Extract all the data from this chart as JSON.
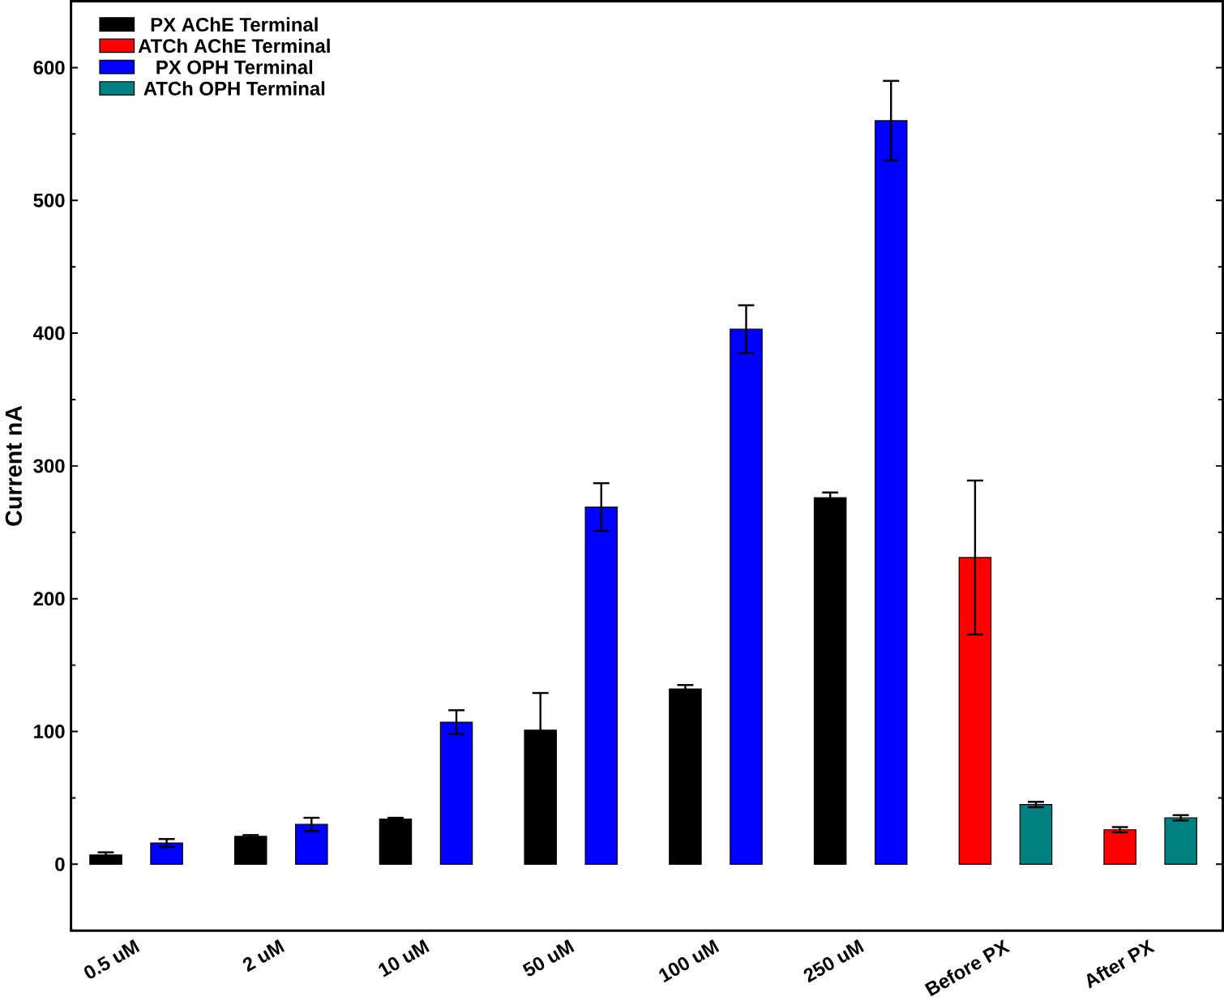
{
  "chart_data": {
    "type": "bar",
    "ylabel": "Current nA",
    "categories": [
      "0.5 uM",
      "2 uM",
      "10 uM",
      "50 uM",
      "100 uM",
      "250 uM",
      "Before PX",
      "After PX"
    ],
    "series": [
      {
        "name": "PX AChE Terminal",
        "color": "#000000",
        "values": [
          7,
          21,
          34,
          101,
          132,
          276,
          null,
          null
        ],
        "errors": [
          2,
          1,
          1,
          28,
          3,
          4,
          null,
          null
        ]
      },
      {
        "name": "ATCh AChE Terminal",
        "color": "#ff0000",
        "values": [
          null,
          null,
          null,
          null,
          null,
          null,
          231,
          26
        ],
        "errors": [
          null,
          null,
          null,
          null,
          null,
          null,
          58,
          2
        ]
      },
      {
        "name": "PX OPH Terminal",
        "color": "#0000ff",
        "values": [
          16,
          30,
          107,
          269,
          403,
          560,
          null,
          null
        ],
        "errors": [
          3,
          5,
          9,
          18,
          18,
          30,
          null,
          null
        ]
      },
      {
        "name": "ATCh OPH Terminal",
        "color": "#008080",
        "values": [
          null,
          null,
          null,
          null,
          null,
          null,
          45,
          35
        ],
        "errors": [
          null,
          null,
          null,
          null,
          null,
          null,
          2,
          2
        ]
      }
    ],
    "ylim": [
      -50,
      650
    ],
    "yticks": [
      0,
      100,
      200,
      300,
      400,
      500,
      600
    ],
    "legend": "top left",
    "grid": false
  }
}
